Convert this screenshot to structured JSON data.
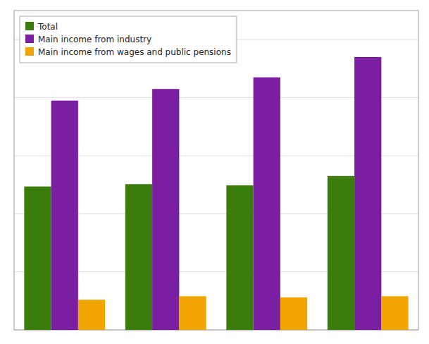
{
  "chart_data": {
    "type": "bar",
    "categories": [
      null,
      null,
      null,
      null
    ],
    "series": [
      {
        "name": "Total",
        "color": "#3a7d0a",
        "values": [
          247000,
          251000,
          249000,
          265000
        ]
      },
      {
        "name": "Main income from industry",
        "color": "#7b1fa2",
        "values": [
          395000,
          415000,
          435000,
          470000
        ]
      },
      {
        "name": "Main income from wages and public pensions",
        "color": "#f0a500",
        "values": [
          52000,
          58000,
          56000,
          58000
        ]
      }
    ],
    "ylim": [
      0,
      550000
    ],
    "yticks": [
      0,
      100000,
      200000,
      300000,
      400000,
      500000
    ],
    "grid": true,
    "legend": "top-left",
    "tick_labels": false
  }
}
